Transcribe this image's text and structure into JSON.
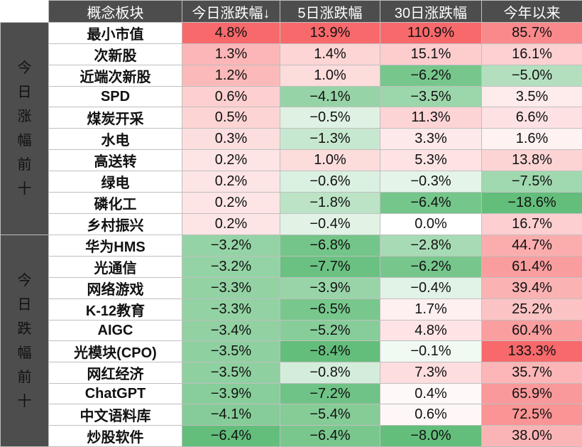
{
  "chart_data": {
    "type": "table",
    "columns": [
      "概念板块",
      "今日涨跌幅↓",
      "5日涨跌幅",
      "30日涨跌幅",
      "今年以来"
    ],
    "groups": [
      {
        "label": "今\n日\n涨\n幅\n前\n十",
        "kind": "up",
        "rows": [
          {
            "name": "最小市值",
            "values": [
              4.8,
              13.9,
              110.9,
              85.7
            ]
          },
          {
            "name": "次新股",
            "values": [
              1.3,
              1.4,
              15.1,
              16.1
            ]
          },
          {
            "name": "近端次新股",
            "values": [
              1.2,
              1.0,
              -6.2,
              -5.0
            ]
          },
          {
            "name": "SPD",
            "values": [
              0.6,
              -4.1,
              -3.5,
              3.5
            ]
          },
          {
            "name": "煤炭开采",
            "values": [
              0.5,
              -0.5,
              11.3,
              6.6
            ]
          },
          {
            "name": "水电",
            "values": [
              0.3,
              -1.3,
              3.3,
              1.6
            ]
          },
          {
            "name": "高送转",
            "values": [
              0.2,
              1.0,
              5.3,
              13.8
            ]
          },
          {
            "name": "绿电",
            "values": [
              0.2,
              -0.6,
              -0.3,
              -7.5
            ]
          },
          {
            "name": "磷化工",
            "values": [
              0.2,
              -1.8,
              -6.4,
              -18.6
            ]
          },
          {
            "name": "乡村振兴",
            "values": [
              0.2,
              -0.4,
              0.0,
              16.7
            ]
          }
        ]
      },
      {
        "label": "今\n日\n跌\n幅\n前\n十",
        "kind": "down",
        "rows": [
          {
            "name": "华为HMS",
            "values": [
              -3.2,
              -6.8,
              -2.8,
              44.7
            ]
          },
          {
            "name": "光通信",
            "values": [
              -3.2,
              -7.7,
              -6.2,
              61.4
            ]
          },
          {
            "name": "网络游戏",
            "values": [
              -3.3,
              -3.9,
              -0.4,
              39.4
            ]
          },
          {
            "name": "K-12教育",
            "values": [
              -3.3,
              -6.5,
              1.7,
              25.2
            ]
          },
          {
            "name": "AIGC",
            "values": [
              -3.4,
              -5.2,
              4.8,
              60.4
            ]
          },
          {
            "name": "光模块(CPO)",
            "values": [
              -3.5,
              -8.4,
              -0.1,
              133.3
            ]
          },
          {
            "name": "网红经济",
            "values": [
              -3.5,
              -0.8,
              7.3,
              35.7
            ]
          },
          {
            "name": "ChatGPT",
            "values": [
              -3.9,
              -7.2,
              0.4,
              65.9
            ]
          },
          {
            "name": "中文语料库",
            "values": [
              -4.1,
              -5.4,
              0.6,
              72.5
            ]
          },
          {
            "name": "炒股软件",
            "values": [
              -6.4,
              -6.4,
              -8.0,
              38.0
            ]
          }
        ]
      }
    ],
    "colors": {
      "positive": "#f8696b",
      "negative": "#63be7b",
      "neutral": "#ffffff",
      "header_bg": "#4d4d4d",
      "up_name": "#c00000",
      "down_name": "#375623"
    }
  }
}
